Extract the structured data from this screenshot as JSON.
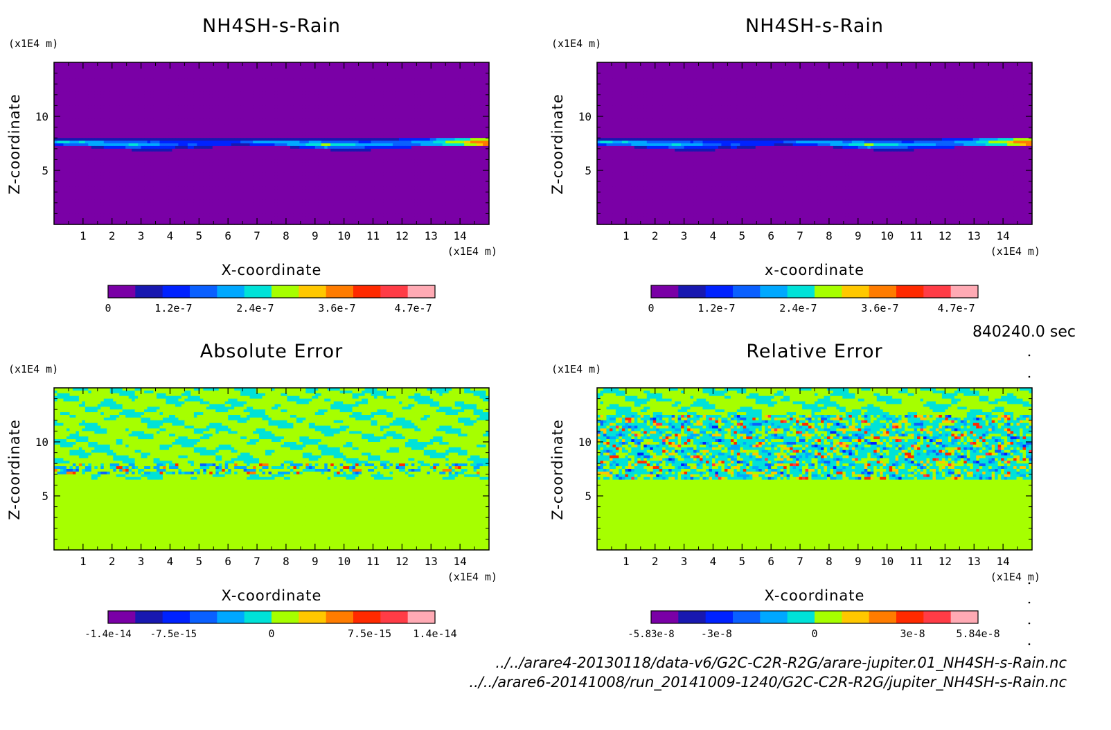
{
  "chart_data": [
    {
      "type": "heatmap",
      "title": "NH4SH-s-Rain",
      "xlabel": "X-coordinate",
      "ylabel": "Z-coordinate",
      "x_unit": "(x1E4 m)",
      "y_unit": "(x1E4 m)",
      "xlim": [
        0,
        15
      ],
      "ylim": [
        0,
        15
      ],
      "x_ticks": [
        "1",
        "2",
        "3",
        "4",
        "5",
        "6",
        "7",
        "8",
        "9",
        "10",
        "11",
        "12",
        "13",
        "14"
      ],
      "y_ticks": [
        "5",
        "10"
      ],
      "grid": false,
      "colorbar": {
        "range": [
          0,
          4.7e-07
        ],
        "tick_labels": [
          "0",
          "1.2e-7",
          "2.4e-7",
          "3.6e-7",
          "4.7e-7"
        ]
      },
      "field": "rain layer concentrated near z = 7 to 8, values up to about 3.6e-7"
    },
    {
      "type": "heatmap",
      "title": "NH4SH-s-Rain",
      "xlabel": "x-coordinate",
      "ylabel": "Z-coordinate",
      "x_unit": "(x1E4 m)",
      "y_unit": "(x1E4 m)",
      "xlim": [
        0,
        15
      ],
      "ylim": [
        0,
        15
      ],
      "x_ticks": [
        "1",
        "2",
        "3",
        "4",
        "5",
        "6",
        "7",
        "8",
        "9",
        "10",
        "11",
        "12",
        "13",
        "14"
      ],
      "y_ticks": [
        "5",
        "10"
      ],
      "grid": false,
      "colorbar": {
        "range": [
          0,
          4.7e-07
        ],
        "tick_labels": [
          "0",
          "1.2e-7",
          "2.4e-7",
          "3.6e-7",
          "4.7e-7"
        ]
      },
      "field": "rain layer concentrated near z = 7 to 8, values up to about 3.6e-7"
    },
    {
      "type": "heatmap",
      "title": "Absolute Error",
      "xlabel": "X-coordinate",
      "ylabel": "Z-coordinate",
      "x_unit": "(x1E4 m)",
      "y_unit": "(x1E4 m)",
      "xlim": [
        0,
        15
      ],
      "ylim": [
        0,
        15
      ],
      "x_ticks": [
        "1",
        "2",
        "3",
        "4",
        "5",
        "6",
        "7",
        "8",
        "9",
        "10",
        "11",
        "12",
        "13",
        "14"
      ],
      "y_ticks": [
        "5",
        "10"
      ],
      "grid": false,
      "colorbar": {
        "range": [
          -1.4e-14,
          1.4e-14
        ],
        "tick_labels": [
          "-1.4e-14",
          "-7.5e-15",
          "0",
          "7.5e-15",
          "1.4e-14"
        ]
      },
      "field": "zero below z = 6.5; small noise above, stronger errors along z = 7.5"
    },
    {
      "type": "heatmap",
      "title": "Relative Error",
      "xlabel": "X-coordinate",
      "ylabel": "Z-coordinate",
      "x_unit": "(x1E4 m)",
      "y_unit": "(x1E4 m)",
      "xlim": [
        0,
        15
      ],
      "ylim": [
        0,
        15
      ],
      "x_ticks": [
        "1",
        "2",
        "3",
        "4",
        "5",
        "6",
        "7",
        "8",
        "9",
        "10",
        "11",
        "12",
        "13",
        "14"
      ],
      "y_ticks": [
        "5",
        "10"
      ],
      "grid": false,
      "colorbar": {
        "range": [
          -5.83e-08,
          5.84e-08
        ],
        "tick_labels": [
          "-5.83e-8",
          "-3e-8",
          "0",
          "3e-8",
          "5.84e-8"
        ]
      },
      "field": "zero below z = 6.5; strong mixed positive/negative errors between z = 6.5 and 12.5"
    }
  ],
  "palette": [
    "#7a00a6",
    "#1818b0",
    "#0022ff",
    "#0a60ff",
    "#00a8ff",
    "#00e2d8",
    "#a6ff00",
    "#ffc800",
    "#ff7c00",
    "#ff2a00",
    "#ff3c46",
    "#ffaab4"
  ],
  "time_label": "840240.0 sec",
  "files": [
    "../../arare4-20130118/data-v6/G2C-C2R-R2G/arare-jupiter.01_NH4SH-s-Rain.nc",
    "../../arare6-20141008/run_20141009-1240/G2C-C2R-R2G/jupiter_NH4SH-s-Rain.nc"
  ]
}
